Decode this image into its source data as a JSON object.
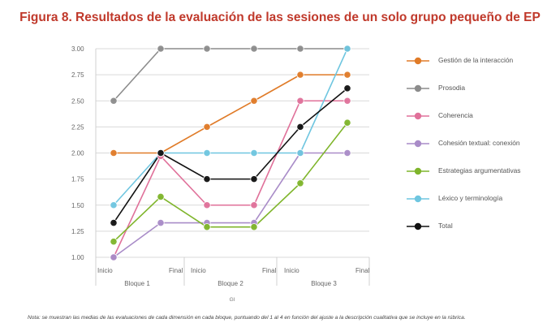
{
  "figure": {
    "title": "Figura 8. Resultados de la evaluación de las sesiones de un solo grupo pequeño de EP",
    "note": "Nota: se muestran las medias de las evaluaciones de cada dimensión en cada bloque, puntuando del 1 al 4 en función del ajuste a la descripción cualitativa que se incluye en la rúbrica."
  },
  "chart_data": {
    "type": "line",
    "xlabel": "GI",
    "ylabel": "",
    "ylim": [
      1.0,
      3.0
    ],
    "y_ticks": [
      "1.00",
      "1.25",
      "1.50",
      "1.75",
      "2.00",
      "2.25",
      "2.50",
      "2.75",
      "3.00"
    ],
    "x": [
      "Inicio",
      "Final",
      "Inicio",
      "Final",
      "Inicio",
      "Final"
    ],
    "groups": [
      {
        "label": "Bloque 1",
        "points": [
          "Inicio",
          "Final"
        ]
      },
      {
        "label": "Bloque 2",
        "points": [
          "Inicio",
          "Final"
        ]
      },
      {
        "label": "Bloque 3",
        "points": [
          "Inicio",
          "Final"
        ]
      }
    ],
    "grid": true,
    "legend_position": "right",
    "series": [
      {
        "name": "Gestión de la interacción",
        "color": "#e07b28",
        "values": [
          2.0,
          2.0,
          2.25,
          2.5,
          2.75,
          2.75
        ]
      },
      {
        "name": "Prosodia",
        "color": "#8c8c8c",
        "values": [
          2.5,
          3.0,
          3.0,
          3.0,
          3.0,
          3.0
        ]
      },
      {
        "name": "Coherencia",
        "color": "#e0719a",
        "values": [
          1.0,
          1.97,
          1.5,
          1.5,
          2.5,
          2.5
        ]
      },
      {
        "name": "Cohesión textual: conexión",
        "color": "#a98cc8",
        "values": [
          1.0,
          1.33,
          1.33,
          1.33,
          2.0,
          2.0
        ]
      },
      {
        "name": "Estrategias argumentativas",
        "color": "#7fb52b",
        "values": [
          1.15,
          1.58,
          1.29,
          1.29,
          1.71,
          2.29
        ]
      },
      {
        "name": "Léxico y terminología",
        "color": "#6fc6e0",
        "values": [
          1.5,
          2.0,
          2.0,
          2.0,
          2.0,
          3.0
        ]
      },
      {
        "name": "Total",
        "color": "#111111",
        "values": [
          1.33,
          2.0,
          1.75,
          1.75,
          2.25,
          2.62
        ]
      }
    ]
  }
}
